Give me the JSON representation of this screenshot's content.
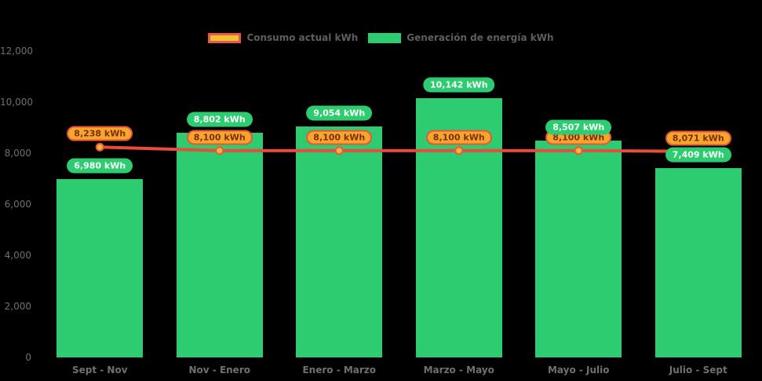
{
  "background": "#000000",
  "legend": {
    "items": [
      {
        "label": "Consumo actual kWh",
        "swatch_fill": "#EFC12E",
        "swatch_border": "#E8584A",
        "series": "line"
      },
      {
        "label": "Generación de energía kWh",
        "swatch_fill": "#2ECC71",
        "swatch_border": "#2ECC71",
        "series": "bar"
      }
    ]
  },
  "chart_data": {
    "type": "bar",
    "title": "",
    "xlabel": "",
    "ylabel": "",
    "categories": [
      "Sept - Nov",
      "Nov - Enero",
      "Enero - Marzo",
      "Marzo - Mayo",
      "Mayo - Julio",
      "Julio - Sept"
    ],
    "series": [
      {
        "name": "Generación de energía kWh",
        "type": "bar",
        "color": "#2ECC71",
        "values": [
          6980,
          8802,
          9054,
          10142,
          8507,
          7409
        ],
        "data_labels": [
          "6,980 kWh",
          "8,802 kWh",
          "9,054 kWh",
          "10,142 kWh",
          "8,507 kWh",
          "7,409 kWh"
        ],
        "label_bg": "#2ECC71",
        "label_text_color": "#FFFFFF"
      },
      {
        "name": "Consumo actual kWh",
        "type": "line",
        "color": "#E84C3C",
        "marker_fill": "#F5B82E",
        "marker_border": "#E8584A",
        "values": [
          8238,
          8100,
          8100,
          8100,
          8100,
          8071
        ],
        "data_labels": [
          "8,238 kWh",
          "8,100 kWh",
          "8,100 kWh",
          "8,100 kWh",
          "8,100 kWh",
          "8,071 kWh"
        ],
        "label_bg": "#F5A62B",
        "label_border": "#E8543C",
        "label_text_color": "#7C2D12"
      }
    ],
    "ylim": [
      0,
      12000
    ],
    "y_ticks": [
      0,
      2000,
      4000,
      6000,
      8000,
      10000,
      12000
    ],
    "y_tick_labels": [
      "0",
      "2,000",
      "4,000",
      "6,000",
      "8,000",
      "10,000",
      "12,000"
    ],
    "grid": false,
    "legend_position": "top"
  }
}
